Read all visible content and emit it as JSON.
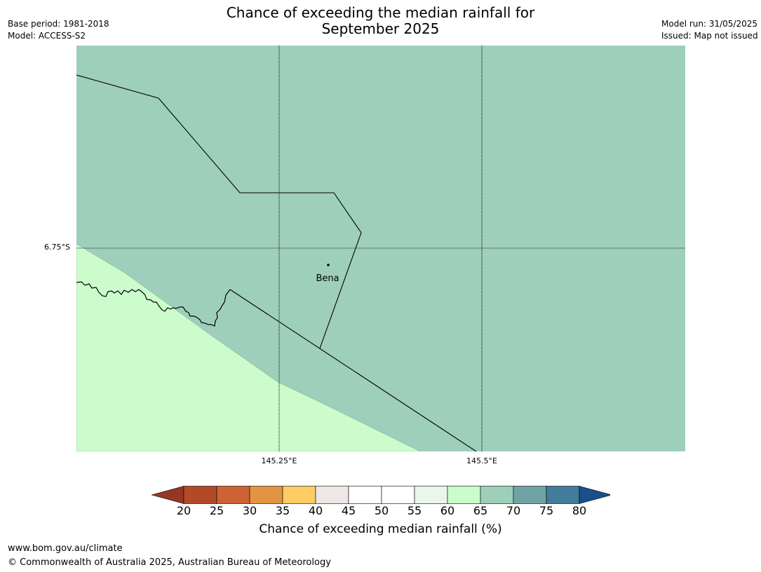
{
  "header": {
    "title_line1": "Chance of exceeding the median rainfall for",
    "title_line2": "September 2025",
    "base_period": "Base period: 1981-2018",
    "model": "Model: ACCESS-S2",
    "model_run": "Model run: 31/05/2025",
    "issued": "Issued: Map not issued"
  },
  "map": {
    "place": "Bena",
    "lat_label": "6.75°S",
    "lon_labels": [
      "145.25°E",
      "145.5°E"
    ],
    "fill_colors": {
      "class_65_70": "#9ecfba",
      "class_60_65": "#ccfccc"
    }
  },
  "colorbar": {
    "ticks": [
      "20",
      "25",
      "30",
      "35",
      "40",
      "45",
      "50",
      "55",
      "60",
      "65",
      "70",
      "75",
      "80"
    ],
    "colors": [
      "#973723",
      "#b34a27",
      "#cd6335",
      "#e29442",
      "#fecc65",
      "#ede8e5",
      "#ffffff",
      "#ffffff",
      "#e9f6e9",
      "#ccfccc",
      "#9ecfba",
      "#6fa3a6",
      "#437b9c",
      "#17508b"
    ],
    "label": "Chance of exceeding median rainfall (%)"
  },
  "footer": {
    "url": "www.bom.gov.au/climate",
    "copyright": "© Commonwealth of Australia 2025, Australian Bureau of Meteorology"
  }
}
